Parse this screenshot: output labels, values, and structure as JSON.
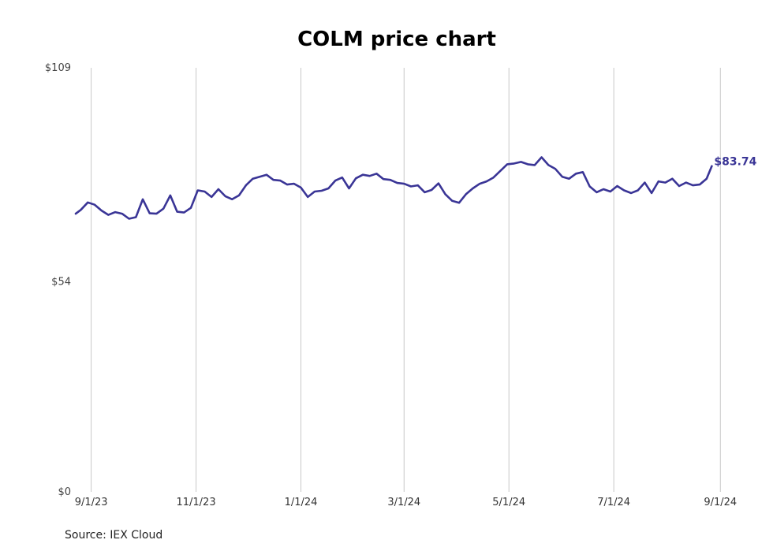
{
  "chart_data": {
    "type": "line",
    "title": "COLM price chart",
    "source": "Source: IEX Cloud",
    "ylim": [
      0,
      109
    ],
    "y_ticks": [
      {
        "value": 0,
        "label": "$0"
      },
      {
        "value": 54,
        "label": "$54"
      },
      {
        "value": 109,
        "label": "$109"
      }
    ],
    "x_ticks": [
      {
        "date": "2023-09-01",
        "label": "9/1/23"
      },
      {
        "date": "2023-11-01",
        "label": "11/1/23"
      },
      {
        "date": "2024-01-01",
        "label": "1/1/24"
      },
      {
        "date": "2024-03-01",
        "label": "3/1/24"
      },
      {
        "date": "2024-05-01",
        "label": "5/1/24"
      },
      {
        "date": "2024-07-01",
        "label": "7/1/24"
      },
      {
        "date": "2024-09-01",
        "label": "9/1/24"
      }
    ],
    "xlim": [
      "2023-08-23",
      "2024-09-05"
    ],
    "grid": "vertical",
    "line_color": "#3a3596",
    "last_label": "$83.74",
    "series": [
      {
        "dates": [
          "2023-08-23",
          "2023-08-26",
          "2023-08-30",
          "2023-09-03",
          "2023-09-07",
          "2023-09-11",
          "2023-09-15",
          "2023-09-19",
          "2023-09-23",
          "2023-09-27",
          "2023-10-01",
          "2023-10-05",
          "2023-10-09",
          "2023-10-13",
          "2023-10-17",
          "2023-10-21",
          "2023-10-25",
          "2023-10-29",
          "2023-11-02",
          "2023-11-06",
          "2023-11-10",
          "2023-11-14",
          "2023-11-18",
          "2023-11-22",
          "2023-11-26",
          "2023-11-30",
          "2023-12-04",
          "2023-12-08",
          "2023-12-12",
          "2023-12-16",
          "2023-12-20",
          "2023-12-24",
          "2023-12-28",
          "2024-01-01",
          "2024-01-05",
          "2024-01-09",
          "2024-01-13",
          "2024-01-17",
          "2024-01-21",
          "2024-01-25",
          "2024-01-29",
          "2024-02-02",
          "2024-02-06",
          "2024-02-10",
          "2024-02-14",
          "2024-02-18",
          "2024-02-22",
          "2024-02-26",
          "2024-03-01",
          "2024-03-05",
          "2024-03-09",
          "2024-03-13",
          "2024-03-17",
          "2024-03-21",
          "2024-03-25",
          "2024-03-29",
          "2024-04-02",
          "2024-04-06",
          "2024-04-10",
          "2024-04-14",
          "2024-04-18",
          "2024-04-22",
          "2024-04-26",
          "2024-04-30",
          "2024-05-04",
          "2024-05-08",
          "2024-05-12",
          "2024-05-16",
          "2024-05-20",
          "2024-05-24",
          "2024-05-28",
          "2024-06-01",
          "2024-06-05",
          "2024-06-09",
          "2024-06-13",
          "2024-06-17",
          "2024-06-21",
          "2024-06-25",
          "2024-06-29",
          "2024-07-03",
          "2024-07-07",
          "2024-07-11",
          "2024-07-15",
          "2024-07-19",
          "2024-07-23",
          "2024-07-27",
          "2024-07-31",
          "2024-08-04",
          "2024-08-08",
          "2024-08-12",
          "2024-08-16",
          "2024-08-20",
          "2024-08-24",
          "2024-08-27"
        ],
        "values": [
          71.5,
          72.5,
          74.4,
          73.8,
          72.3,
          71.2,
          71.9,
          71.5,
          70.2,
          70.6,
          75.2,
          71.6,
          71.5,
          72.8,
          76.2,
          72.0,
          71.8,
          73.0,
          77.5,
          77.2,
          75.8,
          77.8,
          76.0,
          75.2,
          76.2,
          78.8,
          80.5,
          81.0,
          81.5,
          80.2,
          80.0,
          79.0,
          79.2,
          78.2,
          75.8,
          77.2,
          77.4,
          78.0,
          80.0,
          80.8,
          78.0,
          80.6,
          81.5,
          81.2,
          81.8,
          80.4,
          80.2,
          79.4,
          79.2,
          78.5,
          78.8,
          77.0,
          77.6,
          79.3,
          76.5,
          74.8,
          74.3,
          76.5,
          78.0,
          79.2,
          79.8,
          80.8,
          82.5,
          84.2,
          84.4,
          84.8,
          84.2,
          84.0,
          86.0,
          84.0,
          83.0,
          81.0,
          80.5,
          81.8,
          82.2,
          78.5,
          77.0,
          77.8,
          77.2,
          78.6,
          77.5,
          76.8,
          77.5,
          79.5,
          76.8,
          79.8,
          79.5,
          80.5,
          78.6,
          79.5,
          78.8,
          79.0,
          80.5,
          83.74
        ]
      }
    ]
  }
}
